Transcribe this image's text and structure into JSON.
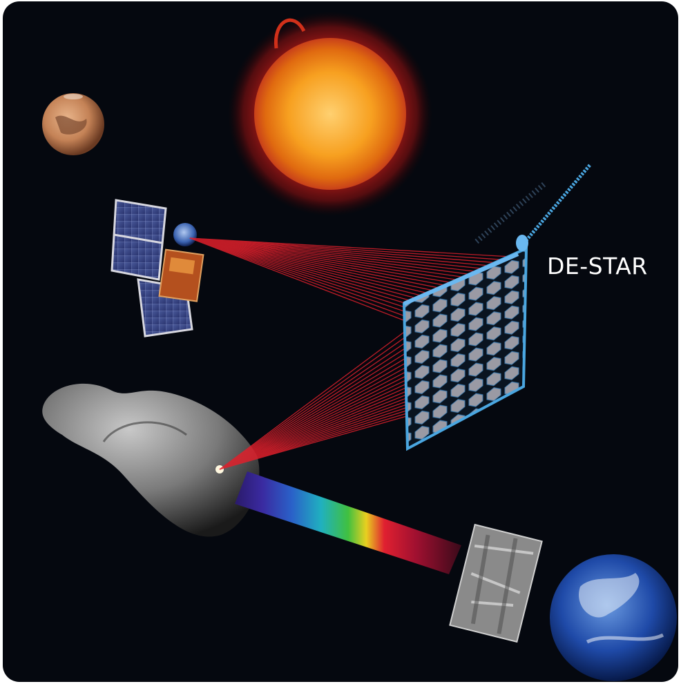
{
  "scene": {
    "background": "#05080f",
    "label_text": "DE-STAR",
    "colors": {
      "laser": "#e0202c",
      "array_frame": "#4aa6e0",
      "sun_core": "#f5a020",
      "sun_corona": "#c8201a",
      "mars": "#c98a5a",
      "earth_ocean": "#1c3f9a"
    },
    "objects": [
      "sun",
      "mars",
      "satellite",
      "earth-small",
      "laser-array",
      "asteroid",
      "spectrum-beam",
      "surface-image",
      "earth"
    ]
  }
}
